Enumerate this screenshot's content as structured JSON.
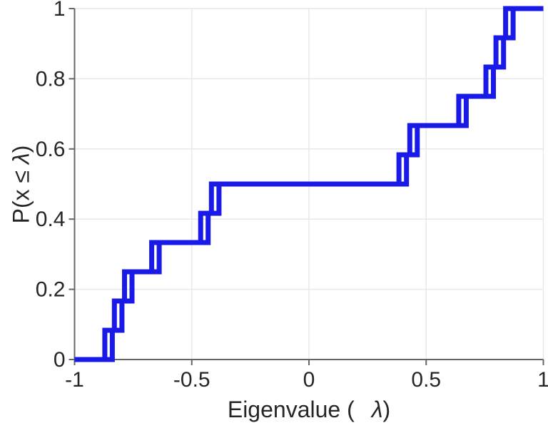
{
  "figure": {
    "xlabel": {
      "prefix": "Eigenvalue (",
      "lambda": "λ",
      "suffix": ")"
    },
    "ylabel": {
      "prefix": "P(x ",
      "leq": "≤",
      "space": " ",
      "lambda": "λ",
      "suffix": ")"
    }
  },
  "chart_data": {
    "type": "line",
    "subtype": "ecdf_stairs",
    "title": "",
    "xlabel": "Eigenvalue ( λ)",
    "ylabel": "P(x ≤ λ)",
    "xlim": [
      -1,
      1
    ],
    "ylim": [
      0,
      1
    ],
    "x_ticks": [
      -1,
      -0.5,
      0,
      0.5,
      1
    ],
    "x_tick_labels": [
      "-1",
      "-0.5",
      "0",
      "0.5",
      "1"
    ],
    "y_ticks": [
      0,
      0.2,
      0.4,
      0.6,
      0.8,
      1
    ],
    "y_tick_labels": [
      "0",
      "0.2",
      "0.4",
      "0.6",
      "0.8",
      "1"
    ],
    "grid": true,
    "legend": null,
    "n_points": 12,
    "eigenvalues": [
      -0.855,
      -0.814,
      -0.771,
      -0.655,
      -0.446,
      -0.4,
      0.4,
      0.446,
      0.655,
      0.771,
      0.814,
      0.855
    ],
    "cdf_levels": [
      0.0833,
      0.1667,
      0.25,
      0.3333,
      0.4167,
      0.5,
      0.5833,
      0.6667,
      0.75,
      0.8333,
      0.9167,
      1.0
    ],
    "double_line_offset": 0.016,
    "series": [
      {
        "name": "ecdf-staircase-left",
        "x_offset": -0.016
      },
      {
        "name": "ecdf-staircase-right",
        "x_offset": 0.016
      }
    ],
    "line_color": "#1a1ae8",
    "line_width": 7,
    "grid_color": "#e8e8e8",
    "axis_color": "#666666",
    "text_color": "#262626",
    "tick_font_size": 30,
    "label_font_size": 32
  }
}
